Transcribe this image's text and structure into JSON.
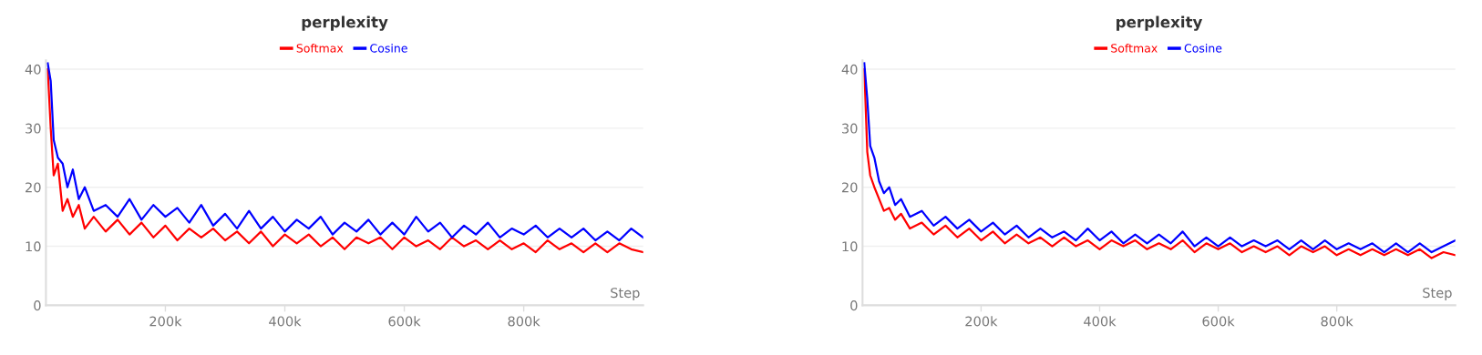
{
  "chart_data": [
    {
      "type": "line",
      "title": "perplexity",
      "xlabel": "Step",
      "legend": "top",
      "grid": "y",
      "marker": "none",
      "line_style": "solid",
      "x": [
        3000,
        8000,
        13000,
        20000,
        28000,
        36000,
        45000,
        55000,
        65000,
        80000,
        100000,
        120000,
        140000,
        160000,
        180000,
        200000,
        220000,
        240000,
        260000,
        280000,
        300000,
        320000,
        340000,
        360000,
        380000,
        400000,
        420000,
        440000,
        460000,
        480000,
        500000,
        520000,
        540000,
        560000,
        580000,
        600000,
        620000,
        640000,
        660000,
        680000,
        700000,
        720000,
        740000,
        760000,
        780000,
        800000,
        820000,
        840000,
        860000,
        880000,
        900000,
        920000,
        940000,
        960000,
        980000,
        1000000
      ],
      "xlim": [
        0,
        1000000
      ],
      "xticks": [
        {
          "value": 200000,
          "label": "200k"
        },
        {
          "value": 400000,
          "label": "400k"
        },
        {
          "value": 600000,
          "label": "600k"
        },
        {
          "value": 800000,
          "label": "800k"
        }
      ],
      "ylim": [
        0,
        41.5
      ],
      "yticks": [
        0,
        10,
        20,
        30,
        40
      ],
      "series": [
        {
          "name": "Softmax",
          "color": "#ff0000",
          "values": [
            40,
            30,
            22,
            24,
            16,
            18,
            15,
            17,
            13,
            15,
            12.5,
            14.5,
            12,
            14,
            11.5,
            13.5,
            11,
            13,
            11.5,
            13,
            11,
            12.5,
            10.5,
            12.5,
            10,
            12,
            10.5,
            12,
            10,
            11.5,
            9.5,
            11.5,
            10.5,
            11.5,
            9.5,
            11.5,
            10,
            11,
            9.5,
            11.5,
            10,
            11,
            9.5,
            11,
            9.5,
            10.5,
            9,
            11,
            9.5,
            10.5,
            9,
            10.5,
            9,
            10.5,
            9.5,
            9
          ]
        },
        {
          "name": "Cosine",
          "color": "#0000ff",
          "values": [
            41,
            38,
            28,
            25,
            24,
            20,
            23,
            18,
            20,
            16,
            17,
            15,
            18,
            14.5,
            17,
            15,
            16.5,
            14,
            17,
            13.5,
            15.5,
            13,
            16,
            13,
            15,
            12.5,
            14.5,
            13,
            15,
            12,
            14,
            12.5,
            14.5,
            12,
            14,
            12,
            15,
            12.5,
            14,
            11.5,
            13.5,
            12,
            14,
            11.5,
            13,
            12,
            13.5,
            11.5,
            13,
            11.5,
            13,
            11,
            12.5,
            11,
            13,
            11.5
          ]
        }
      ]
    },
    {
      "type": "line",
      "title": "perplexity",
      "xlabel": "Step",
      "legend": "top",
      "grid": "y",
      "marker": "none",
      "line_style": "solid",
      "x": [
        3000,
        8000,
        13000,
        20000,
        28000,
        36000,
        45000,
        55000,
        65000,
        80000,
        100000,
        120000,
        140000,
        160000,
        180000,
        200000,
        220000,
        240000,
        260000,
        280000,
        300000,
        320000,
        340000,
        360000,
        380000,
        400000,
        420000,
        440000,
        460000,
        480000,
        500000,
        520000,
        540000,
        560000,
        580000,
        600000,
        620000,
        640000,
        660000,
        680000,
        700000,
        720000,
        740000,
        760000,
        780000,
        800000,
        820000,
        840000,
        860000,
        880000,
        900000,
        920000,
        940000,
        960000,
        980000,
        1000000
      ],
      "xlim": [
        0,
        1000000
      ],
      "xticks": [
        {
          "value": 200000,
          "label": "200k"
        },
        {
          "value": 400000,
          "label": "400k"
        },
        {
          "value": 600000,
          "label": "600k"
        },
        {
          "value": 800000,
          "label": "800k"
        }
      ],
      "ylim": [
        0,
        41.5
      ],
      "yticks": [
        0,
        10,
        20,
        30,
        40
      ],
      "series": [
        {
          "name": "Softmax",
          "color": "#ff0000",
          "values": [
            40,
            26,
            22,
            20,
            18,
            16,
            16.5,
            14.5,
            15.5,
            13,
            14,
            12,
            13.5,
            11.5,
            13,
            11,
            12.5,
            10.5,
            12,
            10.5,
            11.5,
            10,
            11.5,
            10,
            11,
            9.5,
            11,
            10,
            11,
            9.5,
            10.5,
            9.5,
            11,
            9,
            10.5,
            9.5,
            10.5,
            9,
            10,
            9,
            10,
            8.5,
            10,
            9,
            10,
            8.5,
            9.5,
            8.5,
            9.5,
            8.5,
            9.5,
            8.5,
            9.5,
            8,
            9,
            8.5
          ]
        },
        {
          "name": "Cosine",
          "color": "#0000ff",
          "values": [
            41,
            35,
            27,
            25,
            21,
            19,
            20,
            17,
            18,
            15,
            16,
            13.5,
            15,
            13,
            14.5,
            12.5,
            14,
            12,
            13.5,
            11.5,
            13,
            11.5,
            12.5,
            11,
            13,
            11,
            12.5,
            10.5,
            12,
            10.5,
            12,
            10.5,
            12.5,
            10,
            11.5,
            10,
            11.5,
            10,
            11,
            10,
            11,
            9.5,
            11,
            9.5,
            11,
            9.5,
            10.5,
            9.5,
            10.5,
            9,
            10.5,
            9,
            10.5,
            9,
            10,
            11
          ]
        }
      ]
    }
  ]
}
